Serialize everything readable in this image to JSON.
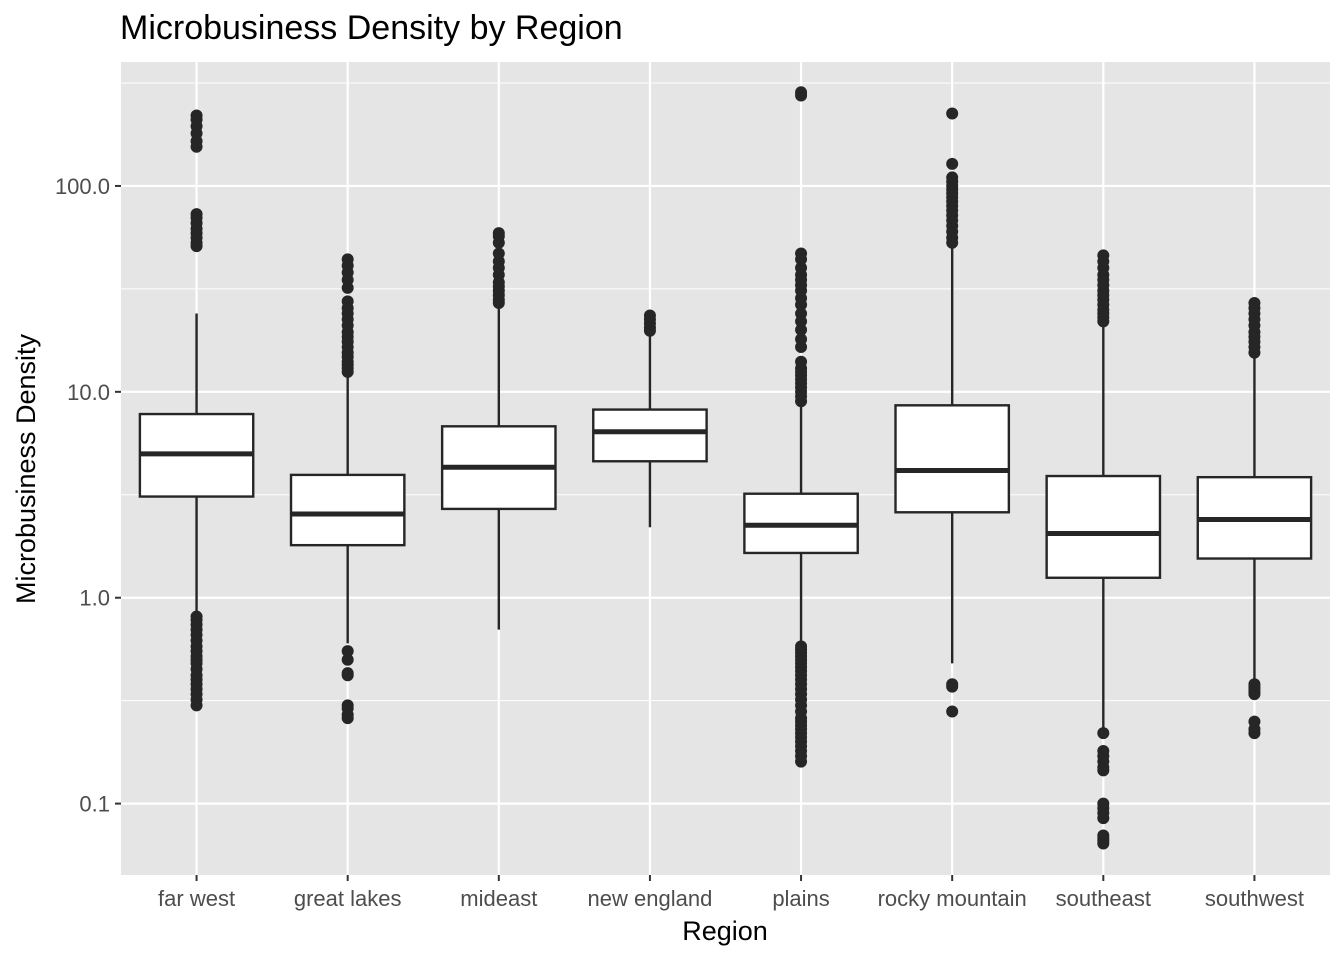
{
  "chart_data": {
    "type": "boxplot",
    "title": "Microbusiness Density by Region",
    "xlabel": "Region",
    "ylabel": "Microbusiness Density",
    "y_scale": "log10",
    "ylim": [
      0.045,
      400
    ],
    "y_ticks": [
      0.1,
      1.0,
      10.0,
      100.0
    ],
    "y_tick_labels": [
      "0.1",
      "1.0",
      "10.0",
      "100.0"
    ],
    "grid": true,
    "legend": "none",
    "colors": {
      "panel": "#e5e5e5",
      "grid": "#ffffff",
      "box_fill": "#ffffff",
      "box_line": "#262626",
      "outlier": "#262626",
      "tick_text": "#4d4d4d"
    },
    "categories": [
      "far west",
      "great lakes",
      "mideast",
      "new england",
      "plains",
      "rocky mountain",
      "southeast",
      "southwest"
    ],
    "boxes": [
      {
        "category": "far west",
        "whisker_low": 0.85,
        "q1": 3.1,
        "median": 5.0,
        "q3": 7.8,
        "whisker_high": 24.0,
        "outliers": [
          0.3,
          0.32,
          0.34,
          0.36,
          0.38,
          0.4,
          0.42,
          0.45,
          0.48,
          0.5,
          0.52,
          0.55,
          0.58,
          0.62,
          0.66,
          0.7,
          0.74,
          0.78,
          0.81,
          51,
          53,
          56,
          59,
          62,
          66,
          70,
          73,
          155,
          165,
          180,
          195,
          210,
          220
        ]
      },
      {
        "category": "great lakes",
        "whisker_low": 0.6,
        "q1": 1.8,
        "median": 2.55,
        "q3": 3.95,
        "whisker_high": 12.0,
        "outliers": [
          0.26,
          0.27,
          0.29,
          0.3,
          0.42,
          0.43,
          0.5,
          0.55,
          12.5,
          13,
          13.5,
          14,
          14.8,
          15.5,
          16.5,
          17.5,
          18.5,
          19.5,
          21,
          22.5,
          24,
          25.5,
          27.5,
          32,
          35,
          38,
          41,
          44
        ]
      },
      {
        "category": "mideast",
        "whisker_low": 0.7,
        "q1": 2.7,
        "median": 4.3,
        "q3": 6.8,
        "whisker_high": 26.0,
        "outliers": [
          27,
          28,
          29.5,
          31,
          32.5,
          34,
          37,
          40,
          43,
          47,
          53,
          57,
          59
        ]
      },
      {
        "category": "new england",
        "whisker_low": 2.2,
        "q1": 4.6,
        "median": 6.4,
        "q3": 8.2,
        "whisker_high": 19.0,
        "outliers": [
          19.8,
          20.5,
          21.5,
          22.5,
          23.5
        ]
      },
      {
        "category": "plains",
        "whisker_low": 0.6,
        "q1": 1.65,
        "median": 2.25,
        "q3": 3.2,
        "whisker_high": 8.8,
        "outliers": [
          0.16,
          0.17,
          0.18,
          0.19,
          0.2,
          0.21,
          0.22,
          0.23,
          0.24,
          0.25,
          0.26,
          0.28,
          0.3,
          0.32,
          0.34,
          0.36,
          0.38,
          0.4,
          0.42,
          0.44,
          0.46,
          0.48,
          0.5,
          0.52,
          0.54,
          0.56,
          0.58,
          9.0,
          9.5,
          10,
          10.5,
          11,
          11.5,
          12,
          12.5,
          13,
          14,
          16.5,
          18,
          20,
          22,
          24,
          26.5,
          28.5,
          31,
          33,
          35,
          37,
          40,
          44,
          47,
          275,
          285
        ]
      },
      {
        "category": "rocky mountain",
        "whisker_low": 0.48,
        "q1": 2.6,
        "median": 4.15,
        "q3": 8.6,
        "whisker_high": 51.0,
        "outliers": [
          0.28,
          0.37,
          0.38,
          53,
          56,
          60,
          64,
          68,
          72,
          76,
          80,
          84,
          88,
          92,
          96,
          100,
          105,
          110,
          128,
          225
        ]
      },
      {
        "category": "southeast",
        "whisker_low": 0.23,
        "q1": 1.25,
        "median": 2.05,
        "q3": 3.9,
        "whisker_high": 21.0,
        "outliers": [
          0.064,
          0.066,
          0.068,
          0.07,
          0.085,
          0.09,
          0.095,
          0.1,
          0.145,
          0.15,
          0.16,
          0.17,
          0.18,
          0.22,
          22,
          23,
          24,
          25,
          26.5,
          28,
          29.5,
          31,
          33,
          35,
          37,
          40,
          43,
          46
        ]
      },
      {
        "category": "southwest",
        "whisker_low": 0.39,
        "q1": 1.55,
        "median": 2.4,
        "q3": 3.85,
        "whisker_high": 15.0,
        "outliers": [
          0.22,
          0.23,
          0.25,
          0.34,
          0.35,
          0.36,
          0.37,
          0.38,
          15.5,
          16.5,
          17.5,
          18.5,
          19.5,
          21,
          22.5,
          24,
          25.5,
          27
        ]
      }
    ]
  }
}
